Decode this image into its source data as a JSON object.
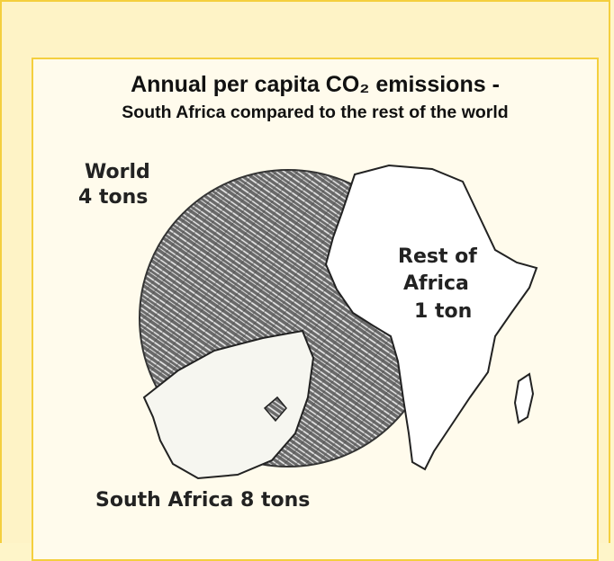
{
  "title": "Annual per capita CO₂ emissions -",
  "subtitle": "South Africa compared to the rest of the world",
  "labels": {
    "world": [
      "World",
      "4 tons"
    ],
    "rest_of_africa": [
      "Rest of",
      "Africa",
      "1 ton"
    ],
    "south_africa": [
      "South Africa 8 tons"
    ]
  }
}
